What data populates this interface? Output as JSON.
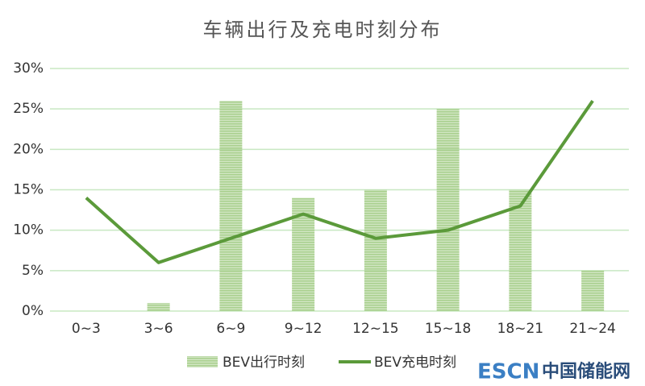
{
  "chart_data": {
    "type": "bar",
    "title": "车辆出行及充电时刻分布",
    "categories": [
      "0~3",
      "3~6",
      "6~9",
      "9~12",
      "12~15",
      "15~18",
      "18~21",
      "21~24"
    ],
    "series": [
      {
        "name": "BEV出行时刻",
        "type": "bar",
        "color": "#a9d08e",
        "values": [
          0,
          1,
          26,
          14,
          15,
          25,
          15,
          5
        ]
      },
      {
        "name": "BEV充电时刻",
        "type": "line",
        "color": "#5b9a3a",
        "values": [
          14,
          6,
          9,
          12,
          9,
          10,
          13,
          26
        ]
      }
    ],
    "ylim": [
      0,
      30
    ],
    "yticks": [
      {
        "value": 0,
        "label": "0%"
      },
      {
        "value": 5,
        "label": "5%"
      },
      {
        "value": 10,
        "label": "10%"
      },
      {
        "value": 15,
        "label": "15%"
      },
      {
        "value": 20,
        "label": "20%"
      },
      {
        "value": 25,
        "label": "25%"
      },
      {
        "value": 30,
        "label": "30%"
      }
    ],
    "grid": true,
    "legend": "bottom",
    "watermark": {
      "brand": "ESCN",
      "name": "中国储能网"
    }
  }
}
